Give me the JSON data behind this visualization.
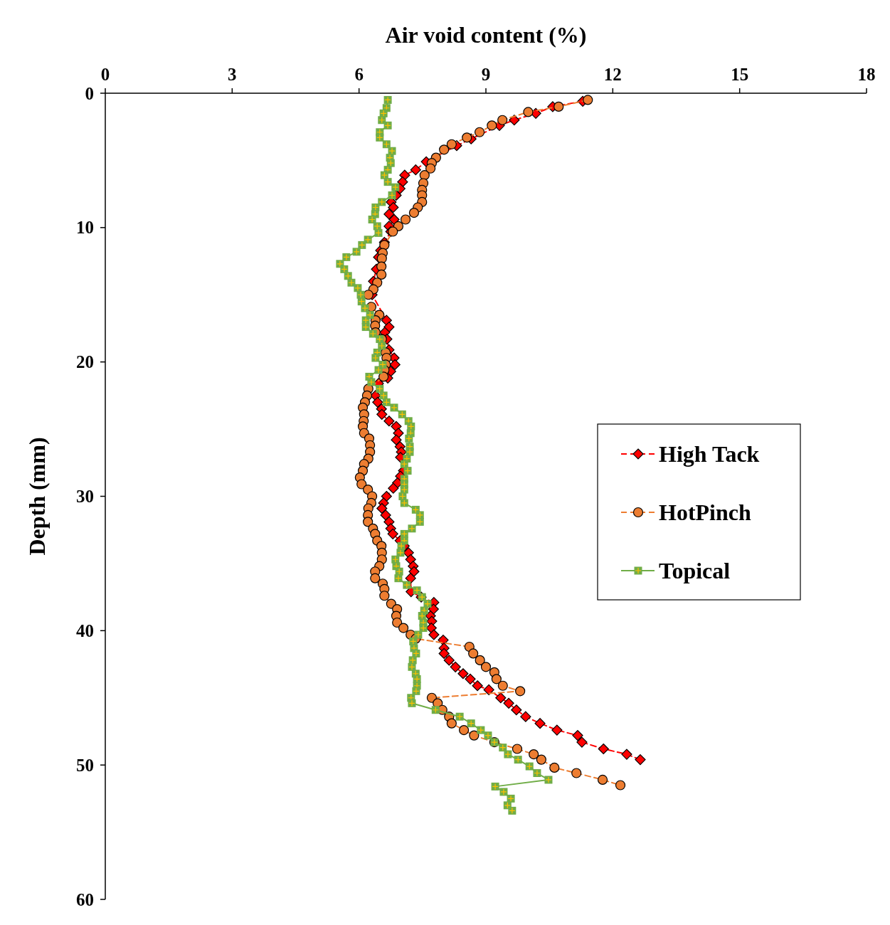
{
  "chart_data": {
    "type": "line",
    "xlabel": "Air void content (%)",
    "ylabel": "Depth (mm)",
    "xlim": [
      0,
      18
    ],
    "xticks": [
      0,
      3,
      6,
      9,
      12,
      15,
      18
    ],
    "ylim": [
      60,
      0
    ],
    "yticks": [
      0,
      10,
      20,
      30,
      40,
      50,
      60
    ],
    "grid": false,
    "legend": "right",
    "series": [
      {
        "name": "High Tack",
        "color": "#ff0000",
        "marker": "diamond",
        "line_style": "dashed",
        "x": [
          11.29,
          10.58,
          10.18,
          9.67,
          9.32,
          8.65,
          8.31,
          7.59,
          7.34,
          7.08,
          7.03,
          6.97,
          6.88,
          6.76,
          6.81,
          6.71,
          6.83,
          6.71,
          6.75,
          6.6,
          6.51,
          6.46,
          6.41,
          6.34,
          6.31,
          6.65,
          6.71,
          6.61,
          6.66,
          6.71,
          6.83,
          6.85,
          6.75,
          6.68,
          6.46,
          6.39,
          6.44,
          6.53,
          6.54,
          6.71,
          6.88,
          6.93,
          6.88,
          6.97,
          7.0,
          6.98,
          7.05,
          6.98,
          6.91,
          6.81,
          6.65,
          6.58,
          6.54,
          6.63,
          6.71,
          6.75,
          6.8,
          6.97,
          7.07,
          7.17,
          7.22,
          7.28,
          7.3,
          7.22,
          7.23,
          7.47,
          7.77,
          7.76,
          7.69,
          7.72,
          7.71,
          7.77,
          7.99,
          8.01,
          8.01,
          8.13,
          8.28,
          8.46,
          8.63,
          8.8,
          9.07,
          9.35,
          9.54,
          9.72,
          9.94,
          10.28,
          10.68,
          11.17,
          11.27,
          11.78,
          12.33,
          12.65
        ],
        "values": [
          0.6,
          1.0,
          1.5,
          2.0,
          2.4,
          3.4,
          3.9,
          5.1,
          5.7,
          6.1,
          6.6,
          7.1,
          7.6,
          8.1,
          8.5,
          9.0,
          9.4,
          9.9,
          10.3,
          11.1,
          11.7,
          12.2,
          13.1,
          14.0,
          15.0,
          16.9,
          17.4,
          17.8,
          18.3,
          19.1,
          19.7,
          20.2,
          20.7,
          21.2,
          21.6,
          22.5,
          23.0,
          23.5,
          23.9,
          24.4,
          24.8,
          25.3,
          25.8,
          26.3,
          26.7,
          27.1,
          28.1,
          28.5,
          29.0,
          29.4,
          30.0,
          30.5,
          30.9,
          31.4,
          31.9,
          32.4,
          32.8,
          33.3,
          33.7,
          34.2,
          34.7,
          35.2,
          35.6,
          36.1,
          37.1,
          37.5,
          37.9,
          38.4,
          38.9,
          39.3,
          39.8,
          40.3,
          40.7,
          41.3,
          41.7,
          42.2,
          42.7,
          43.2,
          43.6,
          44.1,
          44.4,
          45.0,
          45.4,
          45.9,
          46.4,
          46.9,
          47.4,
          47.8,
          48.3,
          48.8,
          49.2,
          49.6
        ]
      },
      {
        "name": "HotPinch",
        "color": "#ed7d31",
        "marker": "circle",
        "line_style": "dashed",
        "x": [
          11.41,
          10.72,
          10.0,
          9.39,
          9.14,
          8.85,
          8.55,
          8.19,
          8.01,
          7.82,
          7.72,
          7.69,
          7.55,
          7.52,
          7.49,
          7.49,
          7.49,
          7.39,
          7.3,
          7.1,
          6.93,
          6.8,
          6.6,
          6.56,
          6.54,
          6.53,
          6.53,
          6.43,
          6.34,
          6.22,
          6.29,
          6.48,
          6.39,
          6.38,
          6.39,
          6.54,
          6.63,
          6.65,
          6.63,
          6.6,
          6.58,
          6.22,
          6.19,
          6.14,
          6.09,
          6.12,
          6.11,
          6.09,
          6.12,
          6.24,
          6.26,
          6.26,
          6.22,
          6.12,
          6.09,
          6.02,
          6.06,
          6.21,
          6.31,
          6.29,
          6.22,
          6.21,
          6.21,
          6.33,
          6.38,
          6.43,
          6.53,
          6.54,
          6.54,
          6.48,
          6.38,
          6.38,
          6.56,
          6.6,
          6.6,
          6.76,
          6.9,
          6.88,
          6.9,
          7.05,
          7.22,
          7.34,
          8.61,
          8.7,
          8.86,
          9.0,
          9.2,
          9.25,
          9.4,
          9.81,
          7.72,
          7.86,
          7.97,
          8.13,
          8.19,
          8.48,
          8.72,
          9.2,
          9.74,
          10.13,
          10.31,
          10.62,
          11.14,
          11.76,
          12.18
        ],
        "values": [
          0.5,
          1.0,
          1.4,
          2.0,
          2.4,
          2.9,
          3.3,
          3.8,
          4.2,
          4.8,
          5.2,
          5.6,
          6.1,
          6.7,
          7.2,
          7.6,
          8.1,
          8.5,
          8.9,
          9.4,
          9.9,
          10.3,
          11.3,
          11.9,
          12.3,
          12.9,
          13.5,
          14.1,
          14.6,
          15.0,
          15.9,
          16.5,
          16.9,
          17.3,
          17.8,
          18.3,
          19.3,
          19.7,
          20.2,
          20.6,
          21.1,
          22.0,
          22.5,
          23.0,
          23.4,
          23.9,
          24.4,
          24.8,
          25.3,
          25.7,
          26.2,
          26.7,
          27.2,
          27.6,
          28.1,
          28.6,
          29.1,
          29.5,
          30.0,
          30.5,
          30.9,
          31.4,
          31.9,
          32.4,
          32.8,
          33.3,
          33.7,
          34.2,
          34.7,
          35.2,
          35.6,
          36.1,
          36.5,
          36.9,
          37.4,
          38.0,
          38.4,
          38.9,
          39.4,
          39.8,
          40.3,
          40.6,
          41.2,
          41.7,
          42.2,
          42.7,
          43.1,
          43.6,
          44.1,
          44.5,
          45.0,
          45.4,
          45.9,
          46.4,
          46.9,
          47.4,
          47.8,
          48.3,
          48.8,
          49.2,
          49.6,
          50.2,
          50.6,
          51.1,
          51.5
        ]
      },
      {
        "name": "Topical",
        "color": "#70ad47",
        "marker": "square",
        "line_style": "solid",
        "x": [
          6.68,
          6.65,
          6.58,
          6.54,
          6.68,
          6.49,
          6.49,
          6.65,
          6.78,
          6.73,
          6.75,
          6.68,
          6.6,
          6.68,
          6.86,
          6.78,
          6.54,
          6.39,
          6.38,
          6.31,
          6.43,
          6.46,
          6.21,
          6.07,
          5.94,
          5.7,
          5.55,
          5.65,
          5.74,
          5.82,
          5.97,
          6.04,
          6.06,
          6.14,
          6.26,
          6.16,
          6.16,
          6.33,
          6.49,
          6.54,
          6.43,
          6.39,
          6.56,
          6.46,
          6.24,
          6.29,
          6.49,
          6.58,
          6.65,
          6.83,
          7.02,
          7.17,
          7.23,
          7.22,
          7.18,
          7.2,
          7.2,
          7.13,
          7.07,
          7.15,
          7.07,
          7.07,
          7.07,
          7.03,
          7.07,
          7.34,
          7.44,
          7.44,
          7.25,
          7.07,
          7.07,
          7.0,
          6.98,
          6.86,
          6.88,
          6.95,
          6.93,
          7.13,
          7.37,
          7.49,
          7.62,
          7.54,
          7.49,
          7.52,
          7.52,
          7.4,
          7.28,
          7.3,
          7.35,
          7.27,
          7.25,
          7.34,
          7.37,
          7.37,
          7.35,
          7.23,
          7.25,
          7.81,
          8.38,
          8.65,
          8.88,
          9.05,
          9.2,
          9.4,
          9.52,
          9.76,
          10.03,
          10.21,
          10.48,
          9.22,
          9.42,
          9.59,
          9.51,
          9.62
        ],
        "values": [
          0.5,
          1.1,
          1.5,
          2.0,
          2.4,
          2.9,
          3.3,
          3.8,
          4.3,
          4.8,
          5.2,
          5.7,
          6.1,
          6.6,
          7.0,
          7.6,
          8.1,
          8.5,
          9.0,
          9.4,
          9.9,
          10.4,
          10.9,
          11.3,
          11.8,
          12.2,
          12.7,
          13.1,
          13.6,
          14.1,
          14.5,
          15.0,
          15.5,
          16.0,
          16.5,
          16.9,
          17.4,
          17.9,
          18.3,
          18.8,
          19.3,
          19.7,
          20.2,
          20.6,
          21.1,
          21.5,
          22.0,
          22.5,
          23.0,
          23.4,
          23.9,
          24.4,
          24.8,
          25.3,
          25.7,
          26.3,
          26.7,
          27.2,
          27.6,
          28.1,
          28.7,
          29.1,
          29.5,
          30.0,
          30.5,
          31.0,
          31.4,
          31.9,
          32.4,
          32.8,
          33.3,
          33.7,
          34.2,
          34.7,
          35.2,
          35.6,
          36.1,
          36.6,
          37.0,
          37.5,
          38.0,
          38.5,
          38.9,
          39.4,
          39.8,
          40.3,
          40.8,
          41.3,
          41.7,
          42.2,
          42.7,
          43.2,
          43.6,
          44.1,
          44.5,
          45.0,
          45.4,
          45.9,
          46.4,
          46.9,
          47.4,
          47.8,
          48.3,
          48.7,
          49.2,
          49.6,
          50.1,
          50.6,
          51.1,
          51.6,
          52.0,
          52.5,
          53.0,
          53.4
        ]
      }
    ]
  }
}
